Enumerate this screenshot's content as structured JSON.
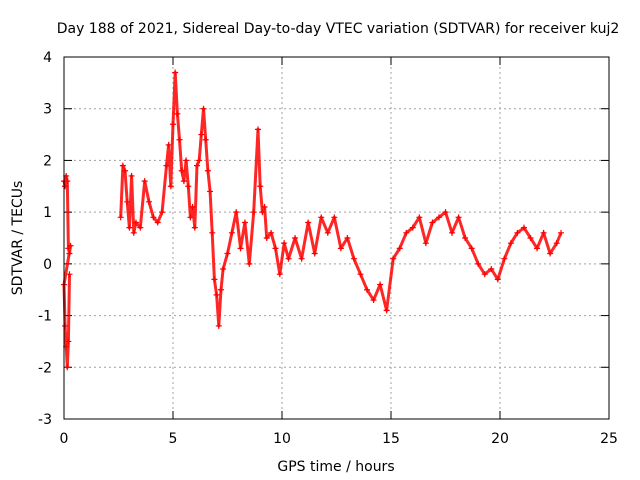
{
  "chart_data": {
    "type": "scatter",
    "title": "Day 188 of 2021, Sidereal Day-to-day VTEC variation (SDTVAR) for receiver kuj2",
    "xlabel": "GPS time / hours",
    "ylabel": "SDTVAR / TECUs",
    "xlim": [
      0,
      25
    ],
    "ylim": [
      -3,
      4
    ],
    "xticks": [
      0,
      5,
      10,
      15,
      20,
      25
    ],
    "yticks": [
      -3,
      -2,
      -1,
      0,
      1,
      2,
      3,
      4
    ],
    "grid": true,
    "marker": "+",
    "color": "#ff0000",
    "series": [
      {
        "name": "kuj2",
        "x": [
          0.0,
          0.05,
          0.1,
          0.15,
          0.2,
          0.25,
          0.3,
          0.0,
          0.05,
          0.1,
          0.15,
          0.2,
          0.25,
          2.6,
          2.7,
          2.8,
          2.9,
          3.0,
          3.1,
          3.2,
          3.3,
          3.5,
          3.7,
          3.9,
          4.1,
          4.3,
          4.5,
          4.7,
          4.8,
          4.9,
          5.0,
          5.1,
          5.2,
          5.3,
          5.4,
          5.5,
          5.6,
          5.7,
          5.8,
          5.9,
          6.0,
          6.1,
          6.2,
          6.3,
          6.4,
          6.5,
          6.6,
          6.7,
          6.8,
          6.9,
          7.0,
          7.1,
          7.2,
          7.3,
          7.5,
          7.7,
          7.9,
          8.1,
          8.3,
          8.5,
          8.7,
          8.9,
          9.0,
          9.1,
          9.2,
          9.3,
          9.5,
          9.7,
          9.9,
          10.1,
          10.3,
          10.6,
          10.9,
          11.2,
          11.5,
          11.8,
          12.1,
          12.4,
          12.7,
          13.0,
          13.3,
          13.6,
          13.9,
          14.2,
          14.5,
          14.8,
          15.1,
          15.4,
          15.7,
          16.0,
          16.3,
          16.6,
          16.9,
          17.2,
          17.5,
          17.8,
          18.1,
          18.4,
          18.7,
          19.0,
          19.3,
          19.6,
          19.9,
          20.2,
          20.5,
          20.8,
          21.1,
          21.4,
          21.7,
          22.0,
          22.3,
          22.6,
          22.8
        ],
        "y": [
          1.6,
          1.5,
          1.7,
          1.6,
          0.3,
          0.2,
          0.35,
          -0.4,
          -1.2,
          -1.6,
          -2.0,
          -1.5,
          -0.2,
          0.9,
          1.9,
          1.8,
          1.2,
          0.7,
          1.7,
          0.6,
          0.8,
          0.7,
          1.6,
          1.2,
          0.9,
          0.8,
          1.0,
          1.9,
          2.3,
          1.5,
          2.7,
          3.7,
          2.9,
          2.4,
          1.8,
          1.6,
          2.0,
          1.5,
          0.9,
          1.1,
          0.7,
          1.9,
          2.0,
          2.5,
          3.0,
          2.4,
          1.8,
          1.4,
          0.6,
          -0.3,
          -0.6,
          -1.2,
          -0.5,
          -0.1,
          0.2,
          0.6,
          1.0,
          0.3,
          0.8,
          0.0,
          1.0,
          2.6,
          1.5,
          1.0,
          1.1,
          0.5,
          0.6,
          0.3,
          -0.2,
          0.4,
          0.1,
          0.5,
          0.1,
          0.8,
          0.2,
          0.9,
          0.6,
          0.9,
          0.3,
          0.5,
          0.1,
          -0.2,
          -0.5,
          -0.7,
          -0.4,
          -0.9,
          0.1,
          0.3,
          0.6,
          0.7,
          0.9,
          0.4,
          0.8,
          0.9,
          1.0,
          0.6,
          0.9,
          0.5,
          0.3,
          0.0,
          -0.2,
          -0.1,
          -0.3,
          0.1,
          0.4,
          0.6,
          0.7,
          0.5,
          0.3,
          0.6,
          0.2,
          0.4,
          0.6
        ]
      }
    ]
  }
}
